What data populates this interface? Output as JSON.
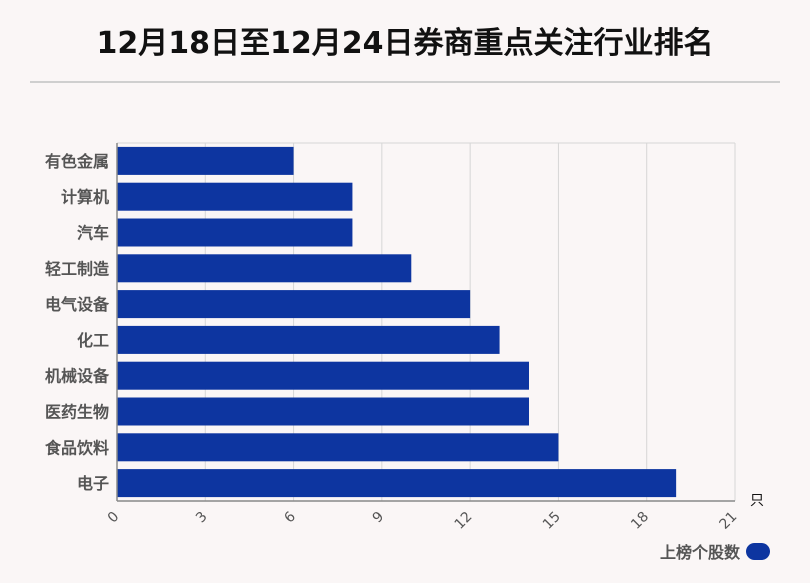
{
  "title": "12月18日至12月24日券商重点关注行业排名",
  "colors": {
    "bar": "#0d35a0",
    "grid": "#d6d6d6",
    "axis": "#888888",
    "label": "#555555"
  },
  "chart_data": {
    "type": "bar",
    "orientation": "horizontal",
    "title": "12月18日至12月24日券商重点关注行业排名",
    "categories": [
      "有色金属",
      "计算机",
      "汽车",
      "轻工制造",
      "电气设备",
      "化工",
      "机械设备",
      "医药生物",
      "食品饮料",
      "电子"
    ],
    "series": [
      {
        "name": "上榜个股数",
        "values": [
          6,
          8,
          8,
          10,
          12,
          13,
          14,
          14,
          15,
          19
        ]
      }
    ],
    "x_ticks": [
      "0",
      "3",
      "6",
      "9",
      "12",
      "15",
      "18",
      "21"
    ],
    "xlim": [
      0,
      21
    ],
    "x_unit": "只",
    "grid": "vertical",
    "legend": "bottom-right"
  }
}
